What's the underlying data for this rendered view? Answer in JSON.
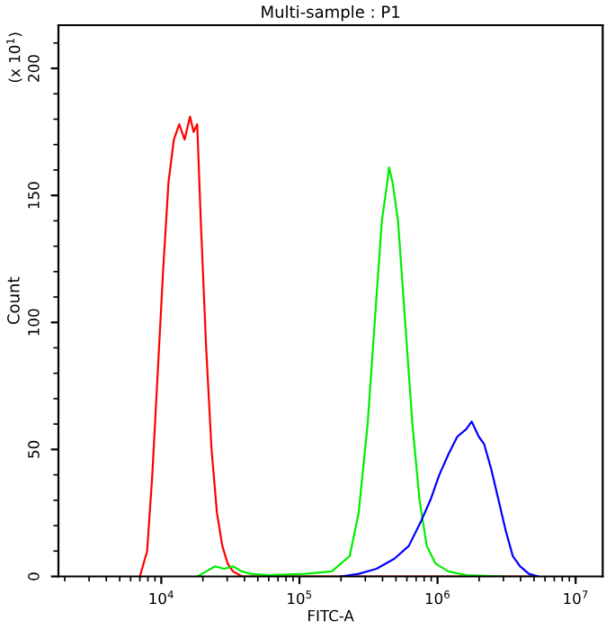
{
  "chart_data": {
    "type": "line",
    "title": "Multi-sample : P1",
    "xlabel": "FITC-A",
    "ylabel": "Count",
    "annotations": [
      "(x 10$^{1}$)"
    ],
    "log": "x",
    "grid": false,
    "legend": false,
    "marker": "none",
    "line_style": "solid",
    "xlim": [
      1800,
      15700000
    ],
    "ylim": [
      0,
      217
    ],
    "xticks": [
      {
        "value": 10000,
        "label": "10$^{4}$"
      },
      {
        "value": 100000,
        "label": "10$^{5}$"
      },
      {
        "value": 1000000,
        "label": "10$^{6}$"
      },
      {
        "value": 10000000,
        "label": "10$^{7}$"
      }
    ],
    "yticks": [
      0,
      50,
      100,
      150,
      200
    ],
    "series": [
      {
        "color": "#ff0000",
        "x": [
          7000,
          7900,
          8610,
          9420,
          10300,
          11270,
          12330,
          13490,
          14760,
          16140,
          17140,
          18200,
          19320,
          21130,
          23120,
          25290,
          27670,
          30270,
          33040,
          38370,
          5330000
        ],
        "values": [
          0,
          10,
          40,
          80,
          120,
          155,
          172,
          178,
          172,
          181,
          175,
          178,
          140,
          90,
          50,
          25,
          12,
          5,
          2,
          0,
          0
        ]
      },
      {
        "color": "#00ee00",
        "x": [
          18200,
          21130,
          24550,
          28510,
          33040,
          38370,
          44570,
          60120,
          109400,
          171400,
          231200,
          268500,
          311900,
          361400,
          395400,
          432500,
          445700,
          473100,
          517600,
          583400,
          657700,
          741300,
          835600,
          970500,
          1197000,
          1614000,
          2938000
        ],
        "values": [
          0,
          2,
          4,
          3,
          4,
          2,
          1,
          0.5,
          1,
          2,
          8,
          25,
          60,
          110,
          140,
          155,
          161,
          155,
          140,
          100,
          60,
          30,
          12,
          5,
          2,
          0.5,
          0
        ]
      },
      {
        "color": "#0000ff",
        "x": [
          199100,
          268500,
          361400,
          487500,
          619400,
          763800,
          887300,
          1030000,
          1197000,
          1390000,
          1614000,
          1766000,
          1991000,
          2178000,
          2455000,
          2767000,
          3119000,
          3508000,
          3954000,
          4592000,
          5333000
        ],
        "values": [
          0,
          1,
          3,
          7,
          12,
          22,
          30,
          40,
          48,
          55,
          58,
          61,
          55,
          52,
          42,
          30,
          18,
          8,
          4,
          1,
          0
        ]
      }
    ]
  }
}
